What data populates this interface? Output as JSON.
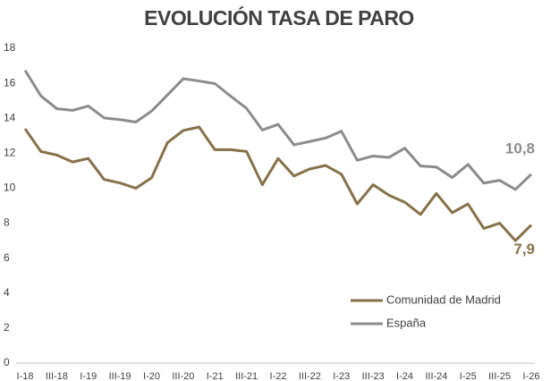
{
  "chart_data": {
    "type": "line",
    "title": "EVOLUCIÓN TASA DE PARO",
    "categories": [
      "I-18",
      null,
      "III-18",
      null,
      "I-19",
      null,
      "III-19",
      null,
      "I-20",
      null,
      "III-20",
      null,
      "I-21",
      null,
      "III-21",
      null,
      "I-22",
      null,
      "III-22",
      null,
      "I-23",
      null,
      "III-23",
      null,
      "I-24",
      null,
      "III-24",
      null,
      "I-25",
      null,
      "III-25",
      null,
      "I-26"
    ],
    "series": [
      {
        "name": "Comunidad de Madrid",
        "color": "#86714a",
        "values": [
          13.4,
          12.1,
          11.9,
          11.5,
          11.7,
          10.5,
          10.3,
          10.0,
          10.6,
          12.6,
          13.3,
          13.5,
          12.2,
          12.2,
          12.1,
          10.2,
          11.7,
          10.7,
          11.1,
          11.3,
          10.8,
          9.1,
          10.2,
          9.6,
          9.2,
          8.5,
          9.7,
          8.6,
          9.1,
          7.7,
          8.0,
          7.0,
          7.9
        ],
        "value_labels": [
          null,
          null,
          null,
          null,
          null,
          null,
          null,
          null,
          null,
          null,
          null,
          null,
          null,
          null,
          null,
          null,
          null,
          null,
          null,
          null,
          null,
          null,
          null,
          null,
          null,
          null,
          null,
          null,
          null,
          null,
          null,
          null,
          "7,9"
        ]
      },
      {
        "name": "España",
        "color": "#8c8c8c",
        "values": [
          16.74,
          15.28,
          14.55,
          14.45,
          14.7,
          14.02,
          13.92,
          13.78,
          14.41,
          15.33,
          16.26,
          16.13,
          15.98,
          15.26,
          14.57,
          13.33,
          13.65,
          12.48,
          12.67,
          12.87,
          13.26,
          11.6,
          11.84,
          11.76,
          12.29,
          11.27,
          11.21,
          10.61,
          11.36,
          10.29,
          10.45,
          9.93,
          10.8
        ],
        "value_labels": [
          null,
          null,
          null,
          null,
          null,
          null,
          null,
          null,
          null,
          null,
          null,
          null,
          null,
          null,
          null,
          null,
          null,
          null,
          null,
          null,
          null,
          null,
          null,
          null,
          null,
          null,
          null,
          null,
          null,
          null,
          null,
          null,
          "10,8"
        ]
      }
    ],
    "ylim": [
      0,
      18
    ],
    "yticks": [
      0,
      2,
      4,
      6,
      8,
      10,
      12,
      14,
      16,
      18
    ],
    "grid": false,
    "legend": "lower right"
  }
}
